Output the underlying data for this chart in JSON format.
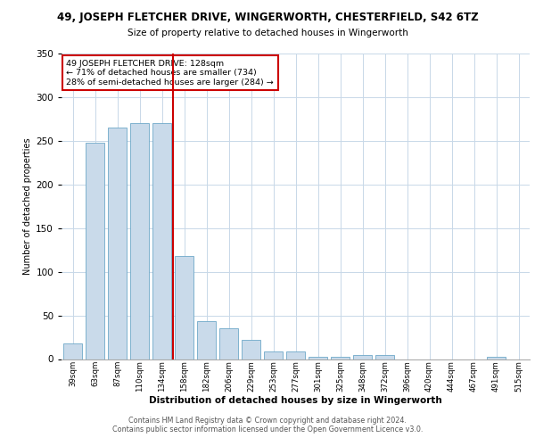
{
  "title_top": "49, JOSEPH FLETCHER DRIVE, WINGERWORTH, CHESTERFIELD, S42 6TZ",
  "title_sub": "Size of property relative to detached houses in Wingerworth",
  "xlabel": "Distribution of detached houses by size in Wingerworth",
  "ylabel": "Number of detached properties",
  "categories": [
    "39sqm",
    "63sqm",
    "87sqm",
    "110sqm",
    "134sqm",
    "158sqm",
    "182sqm",
    "206sqm",
    "229sqm",
    "253sqm",
    "277sqm",
    "301sqm",
    "325sqm",
    "348sqm",
    "372sqm",
    "396sqm",
    "420sqm",
    "444sqm",
    "467sqm",
    "491sqm",
    "515sqm"
  ],
  "values": [
    18,
    248,
    265,
    270,
    270,
    118,
    43,
    35,
    22,
    9,
    9,
    3,
    3,
    5,
    5,
    0,
    0,
    0,
    0,
    3,
    0
  ],
  "bar_color": "#c9daea",
  "bar_edge_color": "#6fa8c8",
  "red_line_x": 4.5,
  "annotation_text": "49 JOSEPH FLETCHER DRIVE: 128sqm\n← 71% of detached houses are smaller (734)\n28% of semi-detached houses are larger (284) →",
  "annotation_box_color": "#ffffff",
  "annotation_box_edge_color": "#cc0000",
  "ylim": [
    0,
    350
  ],
  "yticks": [
    0,
    50,
    100,
    150,
    200,
    250,
    300,
    350
  ],
  "background_color": "#ffffff",
  "grid_color": "#c8d8e8",
  "footer_line1": "Contains HM Land Registry data © Crown copyright and database right 2024.",
  "footer_line2": "Contains public sector information licensed under the Open Government Licence v3.0."
}
